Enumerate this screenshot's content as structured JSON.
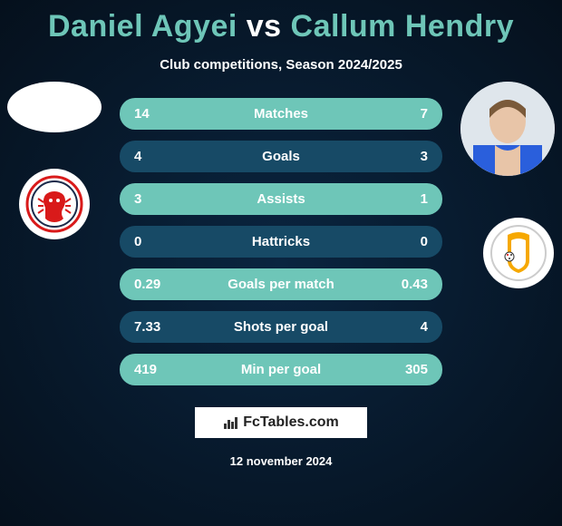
{
  "title": {
    "player1_name": "Daniel Agyei",
    "vs": "vs",
    "player2_name": "Callum Hendry",
    "p1_color": "#6ec6b8",
    "vs_color": "#ffffff",
    "p2_color": "#6ec6b8"
  },
  "subtitle": "Club competitions, Season 2024/2025",
  "rows": {
    "odd_bg": "#6ec6b8",
    "even_bg": "#174a66",
    "label_fontsize": 15,
    "value_fontsize": 15,
    "items": [
      {
        "left": "14",
        "label": "Matches",
        "right": "7"
      },
      {
        "left": "4",
        "label": "Goals",
        "right": "3"
      },
      {
        "left": "3",
        "label": "Assists",
        "right": "1"
      },
      {
        "left": "0",
        "label": "Hattricks",
        "right": "0"
      },
      {
        "left": "0.29",
        "label": "Goals per match",
        "right": "0.43"
      },
      {
        "left": "7.33",
        "label": "Shots per goal",
        "right": "4"
      },
      {
        "left": "419",
        "label": "Min per goal",
        "right": "305"
      }
    ]
  },
  "watermark": {
    "text": "FcTables.com"
  },
  "date": "12 november 2024",
  "avatars": {
    "left": {
      "name": "player1-avatar",
      "fill": "#ffffff"
    },
    "right": {
      "name": "player2-avatar"
    }
  },
  "clubs": {
    "left": {
      "name": "club1-badge",
      "primary": "#d91a1a"
    },
    "right": {
      "name": "club2-badge",
      "primary": "#f6a800"
    }
  },
  "background": {
    "center": "#0a2540",
    "edge": "#05101c"
  }
}
